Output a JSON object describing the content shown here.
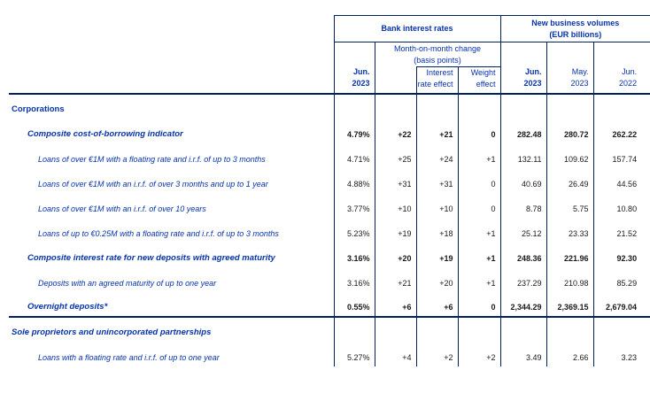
{
  "table": {
    "colors": {
      "label_blue": "#0633ae",
      "line_navy": "#002060",
      "value_dark": "#1a1a1a"
    },
    "header": {
      "bank_rates_group": "Bank interest rates",
      "volumes_group_line1": "New business volumes",
      "volumes_group_line2": "(EUR billions)",
      "mom_change_line1": "Month-on-month change",
      "mom_change_line2": "(basis points)",
      "rate_period_line1": "Jun.",
      "rate_period_line2": "2023",
      "interest_effect_line1": "Interest",
      "interest_effect_line2": "rate effect",
      "weight_effect_line1": "Weight",
      "weight_effect_line2": "effect",
      "volume_periods": [
        {
          "line1": "Jun.",
          "line2": "2023",
          "bold": true
        },
        {
          "line1": "May.",
          "line2": "2023",
          "bold": false
        },
        {
          "line1": "Jun.",
          "line2": "2022",
          "bold": false
        }
      ]
    },
    "columns": [
      "Rate Jun. 2023",
      "Month-on-month change",
      "Interest rate effect",
      "Weight effect",
      "Volume Jun. 2023",
      "Volume May. 2023",
      "Volume Jun. 2022"
    ],
    "rows": [
      {
        "label": "Corporations",
        "indent": 0,
        "bold": true,
        "italic": false,
        "bold_values": false,
        "separator_after": false,
        "values": [
          "",
          "",
          "",
          "",
          "",
          "",
          ""
        ]
      },
      {
        "label": "Composite cost-of-borrowing indicator",
        "indent": 1,
        "bold": true,
        "italic": true,
        "bold_values": true,
        "separator_after": false,
        "values": [
          "4.79%",
          "+22",
          "+21",
          "0",
          "282.48",
          "280.72",
          "262.22"
        ]
      },
      {
        "label": "Loans of over €1M with a floating rate and i.r.f. of up to 3 months",
        "indent": 2,
        "bold": false,
        "italic": true,
        "bold_values": false,
        "separator_after": false,
        "values": [
          "4.71%",
          "+25",
          "+24",
          "+1",
          "132.11",
          "109.62",
          "157.74"
        ]
      },
      {
        "label": "Loans of over €1M with an i.r.f. of over 3 months and up to 1 year",
        "indent": 2,
        "bold": false,
        "italic": true,
        "bold_values": false,
        "separator_after": false,
        "values": [
          "4.88%",
          "+31",
          "+31",
          "0",
          "40.69",
          "26.49",
          "44.56"
        ]
      },
      {
        "label": "Loans of over €1M with an i.r.f. of over 10 years",
        "indent": 2,
        "bold": false,
        "italic": true,
        "bold_values": false,
        "separator_after": false,
        "values": [
          "3.77%",
          "+10",
          "+10",
          "0",
          "8.78",
          "5.75",
          "10.80"
        ]
      },
      {
        "label": "Loans of up to €0.25M with a floating rate and i.r.f. of up to 3 months",
        "indent": 2,
        "bold": false,
        "italic": true,
        "bold_values": false,
        "separator_after": false,
        "values": [
          "5.23%",
          "+19",
          "+18",
          "+1",
          "25.12",
          "23.33",
          "21.52"
        ]
      },
      {
        "label": "Composite interest rate for new deposits with agreed maturity",
        "indent": 1,
        "bold": true,
        "italic": true,
        "bold_values": true,
        "separator_after": false,
        "values": [
          "3.16%",
          "+20",
          "+19",
          "+1",
          "248.36",
          "221.96",
          "92.30"
        ]
      },
      {
        "label": "Deposits with an agreed maturity of up to one year",
        "indent": 2,
        "bold": false,
        "italic": true,
        "bold_values": false,
        "separator_after": false,
        "values": [
          "3.16%",
          "+21",
          "+20",
          "+1",
          "237.29",
          "210.98",
          "85.29"
        ]
      },
      {
        "label": "Overnight deposits*",
        "indent": 1,
        "bold": true,
        "italic": true,
        "bold_values": true,
        "separator_after": true,
        "values": [
          "0.55%",
          "+6",
          "+6",
          "0",
          "2,344.29",
          "2,369.15",
          "2,679.04"
        ]
      },
      {
        "label": "Sole proprietors and unincorporated partnerships",
        "indent": 0,
        "bold": true,
        "italic": true,
        "bold_values": false,
        "separator_after": false,
        "values": [
          "",
          "",
          "",
          "",
          "",
          "",
          ""
        ]
      },
      {
        "label": "Loans with a floating rate and i.r.f. of up to one year",
        "indent": 2,
        "bold": false,
        "italic": true,
        "bold_values": false,
        "separator_after": false,
        "values": [
          "5.27%",
          "+4",
          "+2",
          "+2",
          "3.49",
          "2.66",
          "3.23"
        ]
      }
    ]
  }
}
